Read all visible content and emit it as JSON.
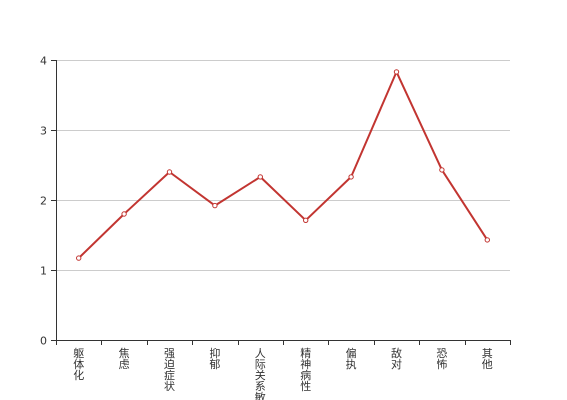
{
  "chart_data": {
    "type": "line",
    "categories": [
      "躯体化",
      "焦虑",
      "强迫症状",
      "抑郁",
      "人际关系敏感",
      "精神病性",
      "偏执",
      "敌对",
      "恐怖",
      "其他"
    ],
    "series": [
      {
        "values": [
          1.17,
          1.8,
          2.4,
          1.92,
          2.33,
          1.71,
          2.33,
          3.83,
          2.43,
          1.43
        ]
      }
    ],
    "y_ticks": [
      "0",
      "1",
      "2",
      "3",
      "4"
    ],
    "ylim": [
      0,
      4
    ],
    "grid": true,
    "legend": "none",
    "colors": {
      "line": "#c23531",
      "grid": "#cccccc",
      "axis": "#333333"
    }
  }
}
